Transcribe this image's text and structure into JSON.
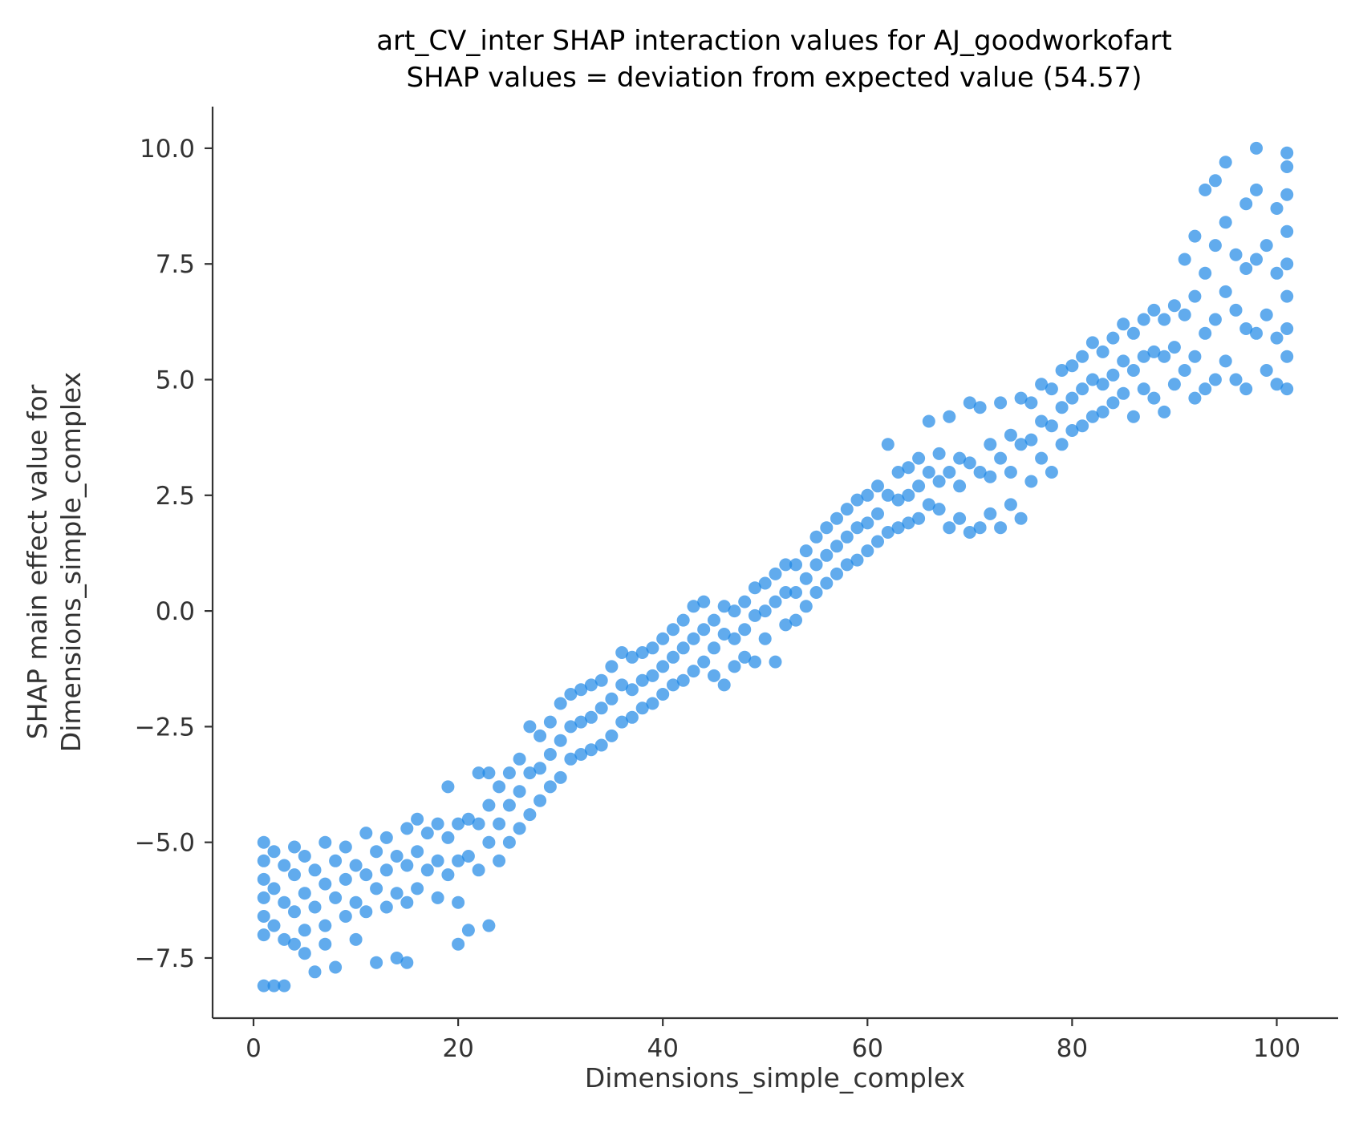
{
  "chart_data": {
    "type": "scatter",
    "title_lines": [
      "art_CV_inter SHAP interaction values for AJ_goodworkofart",
      "SHAP values = deviation from expected value (54.57)"
    ],
    "xlabel": "Dimensions_simple_complex",
    "ylabel_lines": [
      "SHAP main effect value for",
      "Dimensions_simple_complex"
    ],
    "xlim": [
      -4,
      106
    ],
    "ylim": [
      -8.8,
      10.9
    ],
    "x_ticks": [
      0,
      20,
      40,
      60,
      80,
      100
    ],
    "x_tick_labels": [
      "0",
      "20",
      "40",
      "60",
      "80",
      "100"
    ],
    "y_ticks": [
      10.0,
      7.5,
      5.0,
      2.5,
      0.0,
      -2.5,
      -5.0,
      -7.5
    ],
    "y_tick_labels": [
      "10.0",
      "7.5",
      "5.0",
      "2.5",
      "0.0",
      "−2.5",
      "−5.0",
      "−7.5"
    ],
    "grid": false,
    "legend": "none",
    "point_color": "#1e88e5",
    "axis_color": "#333333",
    "points": [
      [
        1,
        -5.0
      ],
      [
        1,
        -5.4
      ],
      [
        1,
        -5.8
      ],
      [
        1,
        -6.2
      ],
      [
        1,
        -6.6
      ],
      [
        1,
        -7.0
      ],
      [
        1,
        -8.1
      ],
      [
        2,
        -5.2
      ],
      [
        2,
        -6.0
      ],
      [
        2,
        -6.8
      ],
      [
        2,
        -8.1
      ],
      [
        3,
        -5.5
      ],
      [
        3,
        -6.3
      ],
      [
        3,
        -7.1
      ],
      [
        3,
        -8.1
      ],
      [
        4,
        -5.1
      ],
      [
        4,
        -5.7
      ],
      [
        4,
        -6.5
      ],
      [
        4,
        -7.2
      ],
      [
        5,
        -5.3
      ],
      [
        5,
        -6.1
      ],
      [
        5,
        -6.9
      ],
      [
        5,
        -7.4
      ],
      [
        6,
        -5.6
      ],
      [
        6,
        -6.4
      ],
      [
        6,
        -7.8
      ],
      [
        7,
        -5.0
      ],
      [
        7,
        -5.9
      ],
      [
        7,
        -6.8
      ],
      [
        7,
        -7.2
      ],
      [
        8,
        -5.4
      ],
      [
        8,
        -6.2
      ],
      [
        8,
        -7.7
      ],
      [
        9,
        -5.1
      ],
      [
        9,
        -5.8
      ],
      [
        9,
        -6.6
      ],
      [
        10,
        -5.5
      ],
      [
        10,
        -6.3
      ],
      [
        10,
        -7.1
      ],
      [
        11,
        -4.8
      ],
      [
        11,
        -5.7
      ],
      [
        11,
        -6.5
      ],
      [
        12,
        -5.2
      ],
      [
        12,
        -6.0
      ],
      [
        12,
        -7.6
      ],
      [
        13,
        -4.9
      ],
      [
        13,
        -5.6
      ],
      [
        13,
        -6.4
      ],
      [
        14,
        -5.3
      ],
      [
        14,
        -6.1
      ],
      [
        14,
        -7.5
      ],
      [
        15,
        -4.7
      ],
      [
        15,
        -5.5
      ],
      [
        15,
        -6.3
      ],
      [
        15,
        -7.6
      ],
      [
        16,
        -4.5
      ],
      [
        16,
        -5.2
      ],
      [
        16,
        -6.0
      ],
      [
        17,
        -4.8
      ],
      [
        17,
        -5.6
      ],
      [
        18,
        -4.6
      ],
      [
        18,
        -5.4
      ],
      [
        18,
        -6.2
      ],
      [
        19,
        -3.8
      ],
      [
        19,
        -4.9
      ],
      [
        19,
        -5.7
      ],
      [
        20,
        -4.6
      ],
      [
        20,
        -5.4
      ],
      [
        20,
        -6.3
      ],
      [
        20,
        -7.2
      ],
      [
        21,
        -4.5
      ],
      [
        21,
        -5.3
      ],
      [
        21,
        -6.9
      ],
      [
        22,
        -3.5
      ],
      [
        22,
        -4.6
      ],
      [
        22,
        -5.6
      ],
      [
        23,
        -3.5
      ],
      [
        23,
        -4.2
      ],
      [
        23,
        -5.0
      ],
      [
        23,
        -6.8
      ],
      [
        24,
        -3.8
      ],
      [
        24,
        -4.6
      ],
      [
        24,
        -5.4
      ],
      [
        25,
        -3.5
      ],
      [
        25,
        -4.2
      ],
      [
        25,
        -5.0
      ],
      [
        26,
        -3.2
      ],
      [
        26,
        -3.9
      ],
      [
        26,
        -4.7
      ],
      [
        27,
        -2.5
      ],
      [
        27,
        -3.5
      ],
      [
        27,
        -4.4
      ],
      [
        28,
        -2.7
      ],
      [
        28,
        -3.4
      ],
      [
        28,
        -4.1
      ],
      [
        29,
        -2.4
      ],
      [
        29,
        -3.1
      ],
      [
        29,
        -3.8
      ],
      [
        30,
        -2.0
      ],
      [
        30,
        -2.8
      ],
      [
        30,
        -3.6
      ],
      [
        31,
        -1.8
      ],
      [
        31,
        -2.5
      ],
      [
        31,
        -3.2
      ],
      [
        32,
        -1.7
      ],
      [
        32,
        -2.4
      ],
      [
        32,
        -3.1
      ],
      [
        33,
        -1.6
      ],
      [
        33,
        -2.3
      ],
      [
        33,
        -3.0
      ],
      [
        34,
        -1.5
      ],
      [
        34,
        -2.1
      ],
      [
        34,
        -2.9
      ],
      [
        35,
        -1.2
      ],
      [
        35,
        -1.9
      ],
      [
        35,
        -2.7
      ],
      [
        36,
        -0.9
      ],
      [
        36,
        -1.6
      ],
      [
        36,
        -2.4
      ],
      [
        37,
        -1.0
      ],
      [
        37,
        -1.7
      ],
      [
        37,
        -2.3
      ],
      [
        38,
        -0.9
      ],
      [
        38,
        -1.5
      ],
      [
        38,
        -2.1
      ],
      [
        39,
        -0.8
      ],
      [
        39,
        -1.4
      ],
      [
        39,
        -2.0
      ],
      [
        40,
        -0.6
      ],
      [
        40,
        -1.2
      ],
      [
        40,
        -1.8
      ],
      [
        41,
        -0.4
      ],
      [
        41,
        -1.0
      ],
      [
        41,
        -1.6
      ],
      [
        42,
        -0.2
      ],
      [
        42,
        -0.8
      ],
      [
        42,
        -1.5
      ],
      [
        43,
        0.1
      ],
      [
        43,
        -0.6
      ],
      [
        43,
        -1.3
      ],
      [
        44,
        0.2
      ],
      [
        44,
        -0.4
      ],
      [
        44,
        -1.1
      ],
      [
        45,
        -0.2
      ],
      [
        45,
        -0.8
      ],
      [
        45,
        -1.4
      ],
      [
        46,
        0.1
      ],
      [
        46,
        -0.5
      ],
      [
        46,
        -1.6
      ],
      [
        47,
        0.0
      ],
      [
        47,
        -0.6
      ],
      [
        47,
        -1.2
      ],
      [
        48,
        0.2
      ],
      [
        48,
        -0.4
      ],
      [
        48,
        -1.0
      ],
      [
        49,
        0.5
      ],
      [
        49,
        -0.1
      ],
      [
        49,
        -1.1
      ],
      [
        50,
        0.6
      ],
      [
        50,
        0.0
      ],
      [
        50,
        -0.6
      ],
      [
        51,
        0.8
      ],
      [
        51,
        0.2
      ],
      [
        51,
        -1.1
      ],
      [
        52,
        1.0
      ],
      [
        52,
        0.4
      ],
      [
        52,
        -0.3
      ],
      [
        53,
        1.0
      ],
      [
        53,
        0.4
      ],
      [
        53,
        -0.2
      ],
      [
        54,
        1.3
      ],
      [
        54,
        0.7
      ],
      [
        54,
        0.1
      ],
      [
        55,
        1.6
      ],
      [
        55,
        1.0
      ],
      [
        55,
        0.4
      ],
      [
        56,
        1.8
      ],
      [
        56,
        1.2
      ],
      [
        56,
        0.6
      ],
      [
        57,
        2.0
      ],
      [
        57,
        1.4
      ],
      [
        57,
        0.8
      ],
      [
        58,
        2.2
      ],
      [
        58,
        1.6
      ],
      [
        58,
        1.0
      ],
      [
        59,
        2.4
      ],
      [
        59,
        1.8
      ],
      [
        59,
        1.1
      ],
      [
        60,
        2.5
      ],
      [
        60,
        1.9
      ],
      [
        60,
        1.3
      ],
      [
        61,
        2.7
      ],
      [
        61,
        2.1
      ],
      [
        61,
        1.5
      ],
      [
        62,
        3.6
      ],
      [
        62,
        2.5
      ],
      [
        62,
        1.7
      ],
      [
        63,
        3.0
      ],
      [
        63,
        2.4
      ],
      [
        63,
        1.8
      ],
      [
        64,
        3.1
      ],
      [
        64,
        2.5
      ],
      [
        64,
        1.9
      ],
      [
        65,
        3.3
      ],
      [
        65,
        2.7
      ],
      [
        65,
        2.0
      ],
      [
        66,
        4.1
      ],
      [
        66,
        3.0
      ],
      [
        66,
        2.3
      ],
      [
        67,
        3.4
      ],
      [
        67,
        2.8
      ],
      [
        67,
        2.2
      ],
      [
        68,
        4.2
      ],
      [
        68,
        3.0
      ],
      [
        68,
        1.8
      ],
      [
        69,
        3.3
      ],
      [
        69,
        2.7
      ],
      [
        69,
        2.0
      ],
      [
        70,
        4.5
      ],
      [
        70,
        3.2
      ],
      [
        70,
        1.7
      ],
      [
        71,
        4.4
      ],
      [
        71,
        3.0
      ],
      [
        71,
        1.8
      ],
      [
        72,
        3.6
      ],
      [
        72,
        2.9
      ],
      [
        72,
        2.1
      ],
      [
        73,
        4.5
      ],
      [
        73,
        3.3
      ],
      [
        73,
        1.8
      ],
      [
        74,
        3.8
      ],
      [
        74,
        3.0
      ],
      [
        74,
        2.3
      ],
      [
        75,
        4.6
      ],
      [
        75,
        3.6
      ],
      [
        75,
        2.0
      ],
      [
        76,
        4.5
      ],
      [
        76,
        3.7
      ],
      [
        76,
        2.8
      ],
      [
        77,
        4.9
      ],
      [
        77,
        4.1
      ],
      [
        77,
        3.3
      ],
      [
        78,
        4.8
      ],
      [
        78,
        4.0
      ],
      [
        78,
        3.0
      ],
      [
        79,
        5.2
      ],
      [
        79,
        4.4
      ],
      [
        79,
        3.6
      ],
      [
        80,
        5.3
      ],
      [
        80,
        4.6
      ],
      [
        80,
        3.9
      ],
      [
        81,
        5.5
      ],
      [
        81,
        4.8
      ],
      [
        81,
        4.0
      ],
      [
        82,
        5.8
      ],
      [
        82,
        5.0
      ],
      [
        82,
        4.2
      ],
      [
        83,
        5.6
      ],
      [
        83,
        4.9
      ],
      [
        83,
        4.3
      ],
      [
        84,
        5.9
      ],
      [
        84,
        5.1
      ],
      [
        84,
        4.5
      ],
      [
        85,
        6.2
      ],
      [
        85,
        5.4
      ],
      [
        85,
        4.7
      ],
      [
        86,
        6.0
      ],
      [
        86,
        5.2
      ],
      [
        86,
        4.2
      ],
      [
        87,
        6.3
      ],
      [
        87,
        5.5
      ],
      [
        87,
        4.8
      ],
      [
        88,
        6.5
      ],
      [
        88,
        5.6
      ],
      [
        88,
        4.6
      ],
      [
        89,
        6.3
      ],
      [
        89,
        5.5
      ],
      [
        89,
        4.3
      ],
      [
        90,
        6.6
      ],
      [
        90,
        5.7
      ],
      [
        90,
        4.9
      ],
      [
        91,
        7.6
      ],
      [
        91,
        6.4
      ],
      [
        91,
        5.2
      ],
      [
        92,
        8.1
      ],
      [
        92,
        6.8
      ],
      [
        92,
        5.5
      ],
      [
        92,
        4.6
      ],
      [
        93,
        9.1
      ],
      [
        93,
        7.3
      ],
      [
        93,
        6.0
      ],
      [
        93,
        4.8
      ],
      [
        94,
        9.3
      ],
      [
        94,
        7.9
      ],
      [
        94,
        6.3
      ],
      [
        94,
        5.0
      ],
      [
        95,
        9.7
      ],
      [
        95,
        8.4
      ],
      [
        95,
        6.9
      ],
      [
        95,
        5.4
      ],
      [
        96,
        7.7
      ],
      [
        96,
        6.5
      ],
      [
        96,
        5.0
      ],
      [
        97,
        8.8
      ],
      [
        97,
        7.4
      ],
      [
        97,
        6.1
      ],
      [
        97,
        4.8
      ],
      [
        98,
        10.0
      ],
      [
        98,
        9.1
      ],
      [
        98,
        7.6
      ],
      [
        98,
        6.0
      ],
      [
        99,
        7.9
      ],
      [
        99,
        6.4
      ],
      [
        99,
        5.2
      ],
      [
        100,
        8.7
      ],
      [
        100,
        7.3
      ],
      [
        100,
        5.9
      ],
      [
        100,
        4.9
      ],
      [
        101,
        9.9
      ],
      [
        101,
        9.6
      ],
      [
        101,
        9.0
      ],
      [
        101,
        8.2
      ],
      [
        101,
        7.5
      ],
      [
        101,
        6.8
      ],
      [
        101,
        6.1
      ],
      [
        101,
        5.5
      ],
      [
        101,
        4.8
      ]
    ]
  }
}
